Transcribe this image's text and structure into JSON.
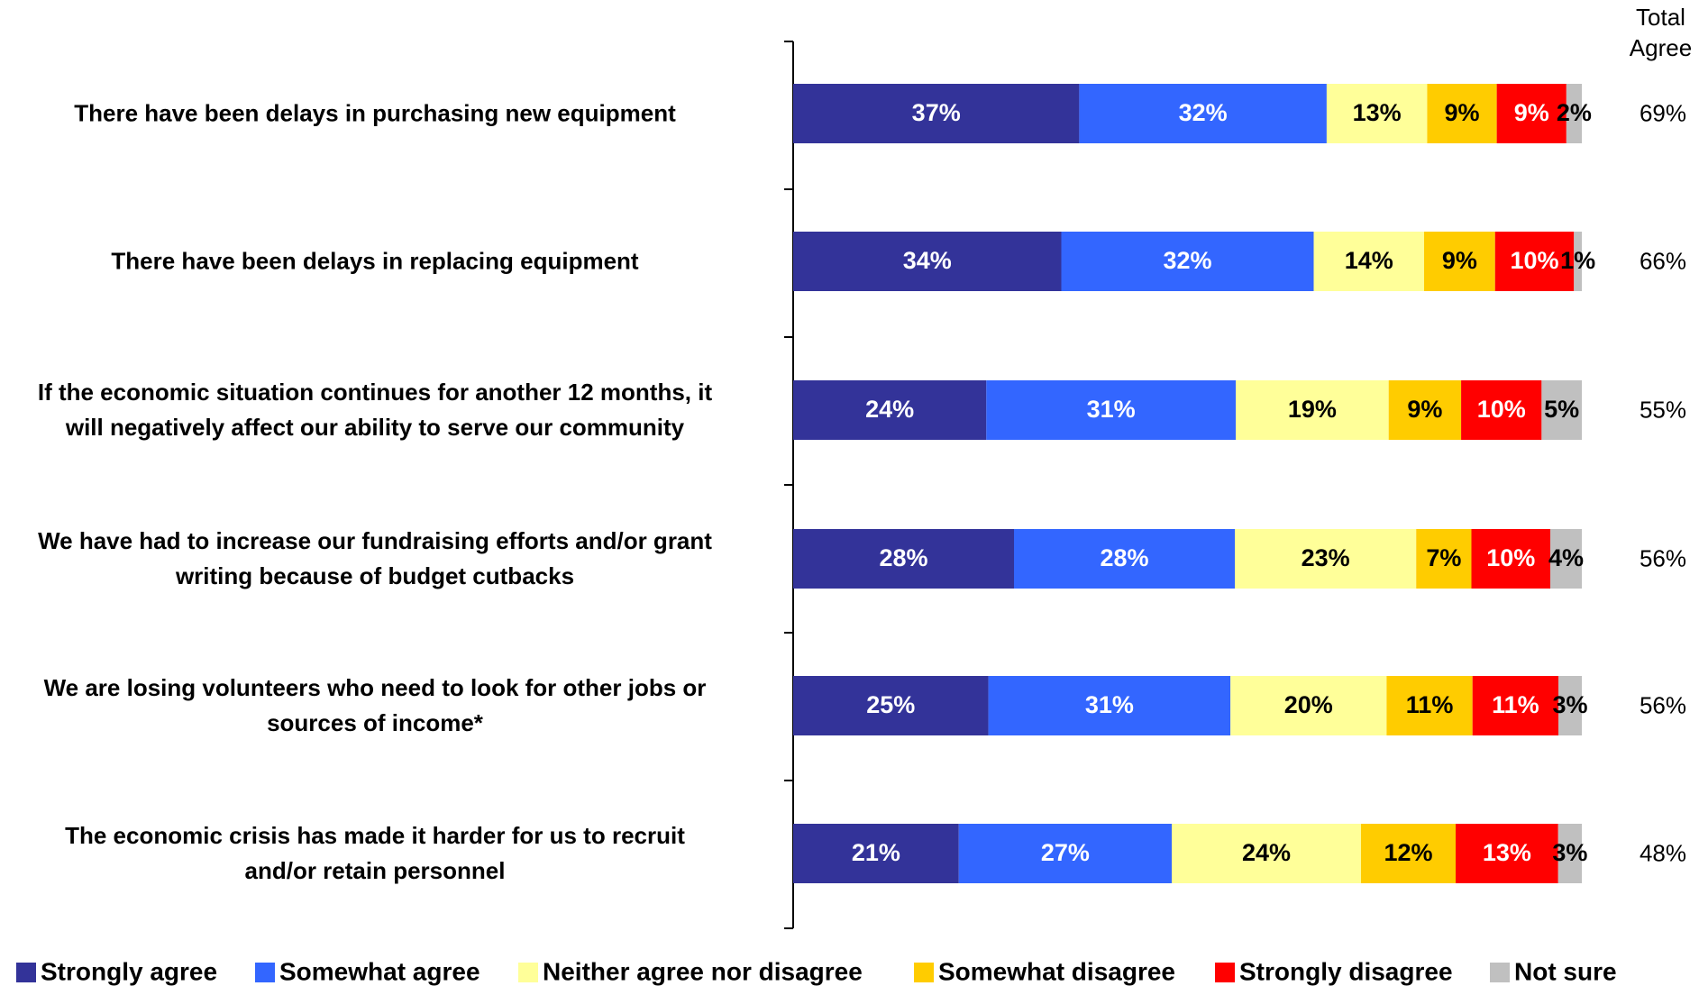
{
  "chart_data": {
    "type": "stacked_bar_horizontal",
    "categories": [
      "There have been delays in purchasing new equipment",
      "There have been delays in replacing equipment",
      "If the economic situation continues for another 12 months, it\nwill negatively affect our ability to serve our community",
      "We have had to increase our fundraising efforts and/or grant\nwriting because of budget cutbacks",
      "We are losing volunteers who need to look for other jobs or\nsources of income*",
      "The economic crisis has made it harder for us to recruit\nand/or retain personnel"
    ],
    "series": [
      {
        "name": "Strongly agree",
        "color": "#333399",
        "label_color": "#ffffff",
        "values": [
          37,
          34,
          24,
          28,
          25,
          21
        ],
        "value_labels": [
          "37%",
          "34%",
          "24%",
          "28%",
          "25%",
          "21%"
        ]
      },
      {
        "name": "Somewhat agree",
        "color": "#3366ff",
        "label_color": "#ffffff",
        "values": [
          32,
          32,
          31,
          28,
          31,
          27
        ],
        "value_labels": [
          "32%",
          "32%",
          "31%",
          "28%",
          "31%",
          "27%"
        ]
      },
      {
        "name": "Neither agree nor disagree",
        "color": "#ffff99",
        "label_color": "#000000",
        "values": [
          13,
          14,
          19,
          23,
          20,
          24
        ],
        "value_labels": [
          "13%",
          "14%",
          "19%",
          "23%",
          "20%",
          "24%"
        ]
      },
      {
        "name": "Somewhat disagree",
        "color": "#ffcc00",
        "label_color": "#000000",
        "values": [
          9,
          9,
          9,
          7,
          11,
          12
        ],
        "value_labels": [
          "9%",
          "9%",
          "9%",
          "7%",
          "11%",
          "12%"
        ]
      },
      {
        "name": "Strongly disagree",
        "color": "#ff0000",
        "label_color": "#ffffff",
        "values": [
          9,
          10,
          10,
          10,
          11,
          13
        ],
        "value_labels": [
          "9%",
          "10%",
          "10%",
          "10%",
          "11%",
          "13%"
        ]
      },
      {
        "name": "Not sure",
        "color": "#c0c0c0",
        "label_color": "#000000",
        "values": [
          2,
          1,
          5,
          4,
          3,
          3
        ],
        "value_labels": [
          "2%",
          "1%",
          "5%",
          "4%",
          "3%",
          "3%"
        ]
      }
    ],
    "total_title": "Total\nAgree",
    "total_agree": [
      69,
      66,
      55,
      56,
      56,
      48
    ],
    "total_agree_labels": [
      "69%",
      "66%",
      "55%",
      "56%",
      "56%",
      "48%"
    ],
    "legend": "bottom"
  }
}
